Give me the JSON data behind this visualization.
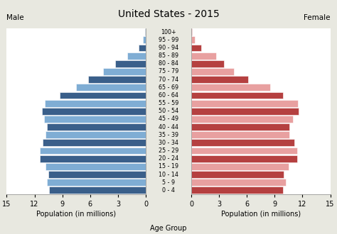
{
  "title": "United States - 2015",
  "age_groups": [
    "0 - 4",
    "5 - 9",
    "10 - 14",
    "15 - 19",
    "20 - 24",
    "25 - 29",
    "30 - 34",
    "35 - 39",
    "40 - 44",
    "45 - 49",
    "50 - 54",
    "55 - 59",
    "60 - 64",
    "65 - 69",
    "70 - 74",
    "75 - 79",
    "80 - 84",
    "85 - 89",
    "90 - 94",
    "95 - 99",
    "100+"
  ],
  "male": [
    10.4,
    10.7,
    10.5,
    10.8,
    11.4,
    11.4,
    11.1,
    10.8,
    10.7,
    11.0,
    11.2,
    10.9,
    9.3,
    7.5,
    6.2,
    4.6,
    3.3,
    2.0,
    0.8,
    0.3,
    0.05
  ],
  "female": [
    9.9,
    10.2,
    10.0,
    10.5,
    11.4,
    11.4,
    11.1,
    10.6,
    10.6,
    11.0,
    11.6,
    11.5,
    9.9,
    8.5,
    6.1,
    4.6,
    3.5,
    2.7,
    1.1,
    0.4,
    0.05
  ],
  "male_colors_alt": [
    true,
    false,
    true,
    false,
    true,
    false,
    true,
    false,
    true,
    false,
    true,
    false,
    true,
    false,
    true,
    false,
    true,
    false,
    true,
    false,
    true
  ],
  "male_dark": "#3a5f8a",
  "male_light": "#7fadd4",
  "female_dark": "#b54040",
  "female_light": "#e8a0a0",
  "xlabel_left": "Population (in millions)",
  "xlabel_center": "Age Group",
  "xlabel_right": "Population (in millions)",
  "label_male": "Male",
  "label_female": "Female",
  "xlim": 15,
  "bg_outer": "#e8e8e0",
  "bg_inner": "#ffffff",
  "spine_color": "#888888",
  "title_fontsize": 10,
  "tick_fontsize": 7,
  "label_fontsize": 7,
  "age_label_fontsize": 5.8
}
